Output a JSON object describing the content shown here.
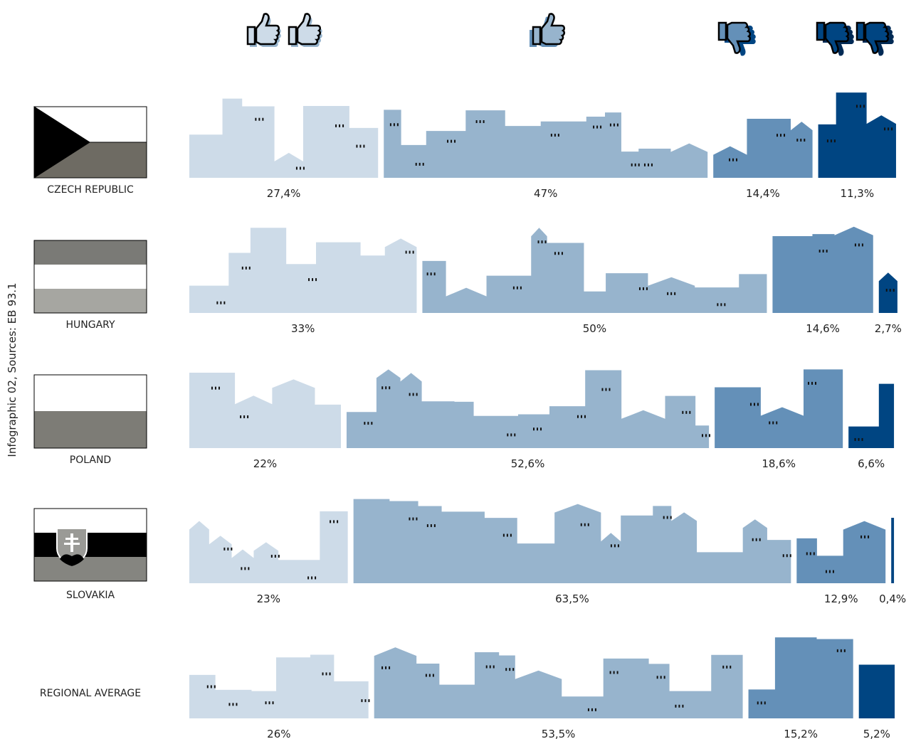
{
  "chart_data": {
    "type": "bar",
    "stacked": true,
    "orientation": "horizontal",
    "source": "Infographic 02, Sources: EB 93.1",
    "categories": [
      "CZECH REPUBLIC",
      "HUNGARY",
      "POLAND",
      "SLOVAKIA",
      "REGIONAL AVERAGE"
    ],
    "series": [
      {
        "color": "#cddbe8",
        "values": [
          27.4,
          33,
          22,
          23,
          26
        ],
        "value_labels": [
          "27,4%",
          "33%",
          "22%",
          "23%",
          "26%"
        ]
      },
      {
        "color": "#97b4cd",
        "values": [
          47,
          50,
          52.6,
          63.5,
          53.5
        ],
        "value_labels": [
          "47%",
          "50%",
          "52,6%",
          "63,5%",
          "53,5%"
        ]
      },
      {
        "color": "#6490b8",
        "values": [
          14.4,
          14.6,
          18.6,
          12.9,
          15.2
        ],
        "value_labels": [
          "14,4%",
          "14,6%",
          "18,6%",
          "12,9%",
          "15,2%"
        ]
      },
      {
        "color": "#004582",
        "values": [
          11.3,
          2.7,
          6.6,
          0.4,
          5.2
        ],
        "value_labels": [
          "11,3%",
          "2,7%",
          "6,6%",
          "0,4%",
          "5,2%"
        ]
      }
    ]
  }
}
